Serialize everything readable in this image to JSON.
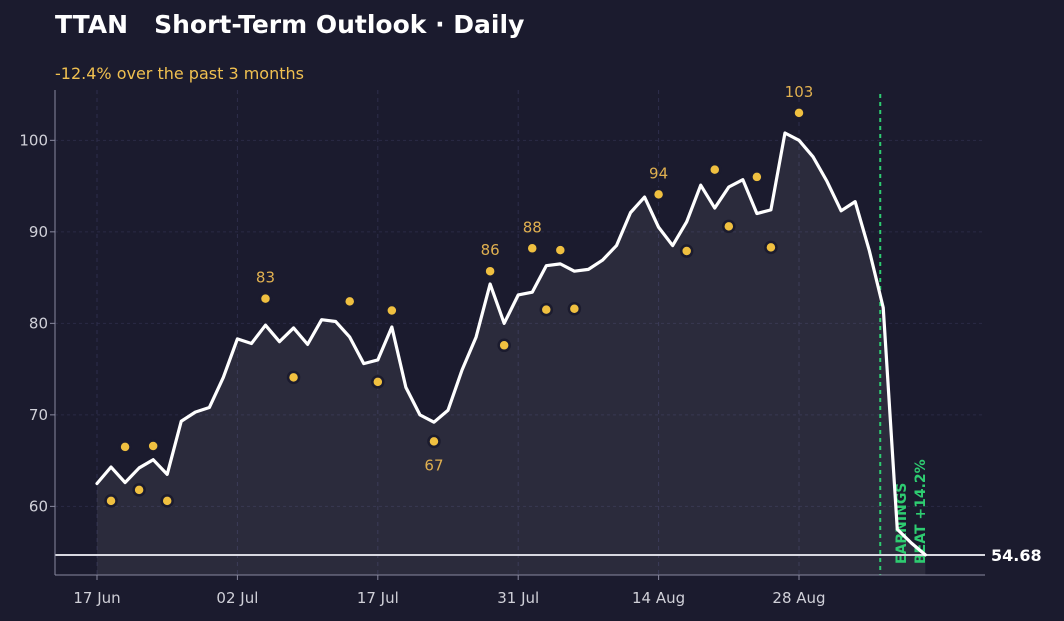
{
  "header": {
    "title": "TTAN   Short-Term Outlook · Daily",
    "subtitle": "-12.4% over the past 3 months"
  },
  "colors": {
    "background": "#1b1b2e",
    "line": "#ffffff",
    "dots": "#f0c040",
    "earnings": "#2ecc71",
    "subtitle": "#f0c050"
  },
  "chart_data": {
    "type": "line",
    "title": "TTAN   Short-Term Outlook · Daily",
    "subtitle": "-12.4% over the past 3 months",
    "xlabel": "",
    "ylabel": "",
    "ylim": [
      52.5,
      105.5
    ],
    "y_ticks": [
      60,
      70,
      80,
      90,
      100
    ],
    "x_ticks": [
      {
        "day": 0,
        "label": "17 Jun"
      },
      {
        "day": 10,
        "label": "02 Jul"
      },
      {
        "day": 20,
        "label": "17 Jul"
      },
      {
        "day": 30,
        "label": "31 Jul"
      },
      {
        "day": 40,
        "label": "14 Aug"
      },
      {
        "day": 50,
        "label": "28 Aug"
      }
    ],
    "grid": true,
    "price": [
      62.5,
      64.3,
      62.6,
      64.2,
      65.1,
      63.5,
      69.3,
      70.3,
      70.8,
      74.1,
      78.3,
      77.8,
      79.8,
      78.0,
      79.5,
      77.7,
      80.4,
      80.2,
      78.5,
      75.6,
      76.0,
      79.6,
      73.0,
      70.0,
      69.2,
      70.5,
      74.9,
      78.5,
      84.3,
      80.0,
      83.1,
      83.4,
      86.3,
      86.5,
      85.7,
      85.9,
      86.9,
      88.5,
      92.1,
      93.8,
      90.5,
      88.5,
      91.1,
      95.1,
      92.6,
      94.9,
      95.7,
      92.0,
      92.4,
      100.8,
      100.0,
      98.2,
      95.5,
      92.3,
      93.3,
      88.0,
      81.7,
      57.5,
      56.0,
      54.7
    ],
    "dots": [
      {
        "day": 1,
        "value": 60.6
      },
      {
        "day": 2,
        "value": 66.5
      },
      {
        "day": 3,
        "value": 61.8
      },
      {
        "day": 4,
        "value": 66.6
      },
      {
        "day": 5,
        "value": 60.6
      },
      {
        "day": 12,
        "value": 82.7,
        "label": "83"
      },
      {
        "day": 14,
        "value": 74.1
      },
      {
        "day": 18,
        "value": 82.4
      },
      {
        "day": 20,
        "value": 73.6
      },
      {
        "day": 21,
        "value": 81.4
      },
      {
        "day": 24,
        "value": 67.1,
        "label": "67",
        "label_pos": "below"
      },
      {
        "day": 28,
        "value": 85.7,
        "label": "86"
      },
      {
        "day": 29,
        "value": 77.6
      },
      {
        "day": 31,
        "value": 88.2,
        "label": "88"
      },
      {
        "day": 32,
        "value": 81.5
      },
      {
        "day": 33,
        "value": 88.0
      },
      {
        "day": 34,
        "value": 81.6
      },
      {
        "day": 40,
        "value": 94.1,
        "label": "94"
      },
      {
        "day": 42,
        "value": 87.9
      },
      {
        "day": 44,
        "value": 96.8
      },
      {
        "day": 45,
        "value": 90.6
      },
      {
        "day": 47,
        "value": 96.0
      },
      {
        "day": 48,
        "value": 88.3
      },
      {
        "day": 50,
        "value": 103.0,
        "label": "103"
      }
    ],
    "earnings_marker": {
      "day": 56,
      "label_line1": "EARNINGS",
      "label_line2": "BEAT +14.2%"
    },
    "last_price": {
      "value": 54.68,
      "label": "54.68"
    }
  }
}
